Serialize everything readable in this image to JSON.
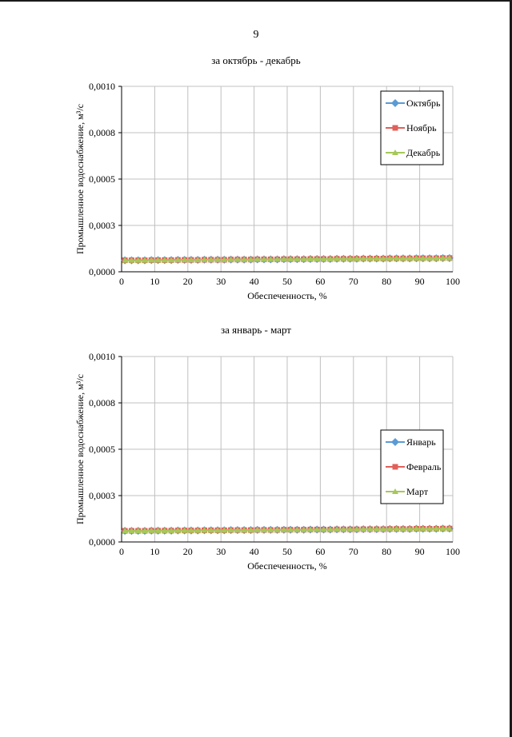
{
  "page": {
    "number": "9"
  },
  "colors": {
    "series1": "#5b9bd5",
    "series2": "#e0605a",
    "series3": "#a6c85a",
    "grid": "#c0c0c0",
    "axis": "#808080"
  },
  "chart_data": [
    {
      "type": "line",
      "title": "за октябрь - декабрь",
      "xlabel": "Обеспеченность, %",
      "ylabel": "Промышленное водоснабжение, м³/с",
      "xlim": [
        0,
        100
      ],
      "ylim": [
        0,
        0.001
      ],
      "x_ticks": [
        "0",
        "10",
        "20",
        "30",
        "40",
        "50",
        "60",
        "70",
        "80",
        "90",
        "100"
      ],
      "y_ticks": [
        "0,0000",
        "0,0003",
        "0,0005",
        "0,0008",
        "0,0010"
      ],
      "grid": true,
      "legend_position": "top-right",
      "x": [
        1,
        3,
        5,
        7,
        9,
        11,
        13,
        15,
        17,
        19,
        21,
        23,
        25,
        27,
        29,
        31,
        33,
        35,
        37,
        39,
        41,
        43,
        45,
        47,
        49,
        51,
        53,
        55,
        57,
        59,
        61,
        63,
        65,
        67,
        69,
        71,
        73,
        75,
        77,
        79,
        81,
        83,
        85,
        87,
        89,
        91,
        93,
        95,
        97,
        99
      ],
      "series": [
        {
          "name": "Октябрь",
          "marker": "diamond",
          "values": [
            6.2e-05,
            6.2e-05,
            6.2e-05,
            6.2e-05,
            6.3e-05,
            6.3e-05,
            6.3e-05,
            6.3e-05,
            6.4e-05,
            6.4e-05,
            6.4e-05,
            6.4e-05,
            6.5e-05,
            6.5e-05,
            6.5e-05,
            6.5e-05,
            6.6e-05,
            6.6e-05,
            6.6e-05,
            6.6e-05,
            6.7e-05,
            6.7e-05,
            6.7e-05,
            6.7e-05,
            6.8e-05,
            6.8e-05,
            6.8e-05,
            6.8e-05,
            6.9e-05,
            6.9e-05,
            6.9e-05,
            6.9e-05,
            7e-05,
            7e-05,
            7e-05,
            7e-05,
            7.1e-05,
            7.1e-05,
            7.1e-05,
            7.1e-05,
            7.2e-05,
            7.2e-05,
            7.2e-05,
            7.2e-05,
            7.3e-05,
            7.3e-05,
            7.3e-05,
            7.3e-05,
            7.4e-05,
            7.4e-05
          ]
        },
        {
          "name": "Ноябрь",
          "marker": "square",
          "values": [
            6.2e-05,
            6.2e-05,
            6.2e-05,
            6.2e-05,
            6.3e-05,
            6.3e-05,
            6.3e-05,
            6.3e-05,
            6.4e-05,
            6.4e-05,
            6.4e-05,
            6.4e-05,
            6.5e-05,
            6.5e-05,
            6.5e-05,
            6.5e-05,
            6.6e-05,
            6.6e-05,
            6.6e-05,
            6.6e-05,
            6.7e-05,
            6.7e-05,
            6.7e-05,
            6.7e-05,
            6.8e-05,
            6.8e-05,
            6.8e-05,
            6.8e-05,
            6.9e-05,
            6.9e-05,
            6.9e-05,
            6.9e-05,
            7e-05,
            7e-05,
            7e-05,
            7e-05,
            7.1e-05,
            7.1e-05,
            7.1e-05,
            7.1e-05,
            7.2e-05,
            7.2e-05,
            7.2e-05,
            7.2e-05,
            7.3e-05,
            7.3e-05,
            7.3e-05,
            7.3e-05,
            7.4e-05,
            7.4e-05
          ]
        },
        {
          "name": "Декабрь",
          "marker": "triangle",
          "values": [
            6.2e-05,
            6.2e-05,
            6.2e-05,
            6.2e-05,
            6.3e-05,
            6.3e-05,
            6.3e-05,
            6.3e-05,
            6.4e-05,
            6.4e-05,
            6.4e-05,
            6.4e-05,
            6.5e-05,
            6.5e-05,
            6.5e-05,
            6.5e-05,
            6.6e-05,
            6.6e-05,
            6.6e-05,
            6.6e-05,
            6.7e-05,
            6.7e-05,
            6.7e-05,
            6.7e-05,
            6.8e-05,
            6.8e-05,
            6.8e-05,
            6.8e-05,
            6.9e-05,
            6.9e-05,
            6.9e-05,
            6.9e-05,
            7e-05,
            7e-05,
            7e-05,
            7e-05,
            7.1e-05,
            7.1e-05,
            7.1e-05,
            7.1e-05,
            7.2e-05,
            7.2e-05,
            7.2e-05,
            7.2e-05,
            7.3e-05,
            7.3e-05,
            7.3e-05,
            7.3e-05,
            7.4e-05,
            7.4e-05
          ]
        }
      ]
    },
    {
      "type": "line",
      "title": "за январь - март",
      "xlabel": "Обеспеченность, %",
      "ylabel": "Промышленное водоснабжение, м³/с",
      "xlim": [
        0,
        100
      ],
      "ylim": [
        0,
        0.001
      ],
      "x_ticks": [
        "0",
        "10",
        "20",
        "30",
        "40",
        "50",
        "60",
        "70",
        "80",
        "90",
        "100"
      ],
      "y_ticks": [
        "0,0000",
        "0,0003",
        "0,0005",
        "0,0008",
        "0,0010"
      ],
      "grid": true,
      "legend_position": "right",
      "x": [
        1,
        3,
        5,
        7,
        9,
        11,
        13,
        15,
        17,
        19,
        21,
        23,
        25,
        27,
        29,
        31,
        33,
        35,
        37,
        39,
        41,
        43,
        45,
        47,
        49,
        51,
        53,
        55,
        57,
        59,
        61,
        63,
        65,
        67,
        69,
        71,
        73,
        75,
        77,
        79,
        81,
        83,
        85,
        87,
        89,
        91,
        93,
        95,
        97,
        99
      ],
      "series": [
        {
          "name": "Январь",
          "marker": "diamond",
          "values": [
            6e-05,
            6e-05,
            6e-05,
            6e-05,
            6.1e-05,
            6.1e-05,
            6.1e-05,
            6.1e-05,
            6.2e-05,
            6.2e-05,
            6.2e-05,
            6.2e-05,
            6.3e-05,
            6.3e-05,
            6.3e-05,
            6.3e-05,
            6.4e-05,
            6.4e-05,
            6.4e-05,
            6.4e-05,
            6.5e-05,
            6.5e-05,
            6.5e-05,
            6.5e-05,
            6.6e-05,
            6.6e-05,
            6.6e-05,
            6.6e-05,
            6.7e-05,
            6.7e-05,
            6.7e-05,
            6.7e-05,
            6.8e-05,
            6.8e-05,
            6.8e-05,
            6.8e-05,
            6.9e-05,
            6.9e-05,
            6.9e-05,
            6.9e-05,
            7e-05,
            7e-05,
            7e-05,
            7e-05,
            7.1e-05,
            7.1e-05,
            7.1e-05,
            7.1e-05,
            7.2e-05,
            7.2e-05
          ]
        },
        {
          "name": "Февраль",
          "marker": "square",
          "values": [
            6e-05,
            6e-05,
            6e-05,
            6e-05,
            6.1e-05,
            6.1e-05,
            6.1e-05,
            6.1e-05,
            6.2e-05,
            6.2e-05,
            6.2e-05,
            6.2e-05,
            6.3e-05,
            6.3e-05,
            6.3e-05,
            6.3e-05,
            6.4e-05,
            6.4e-05,
            6.4e-05,
            6.4e-05,
            6.5e-05,
            6.5e-05,
            6.5e-05,
            6.5e-05,
            6.6e-05,
            6.6e-05,
            6.6e-05,
            6.6e-05,
            6.7e-05,
            6.7e-05,
            6.7e-05,
            6.7e-05,
            6.8e-05,
            6.8e-05,
            6.8e-05,
            6.8e-05,
            6.9e-05,
            6.9e-05,
            6.9e-05,
            6.9e-05,
            7e-05,
            7e-05,
            7e-05,
            7e-05,
            7.1e-05,
            7.1e-05,
            7.1e-05,
            7.1e-05,
            7.2e-05,
            7.2e-05
          ]
        },
        {
          "name": "Март",
          "marker": "triangle",
          "values": [
            6e-05,
            6e-05,
            6e-05,
            6e-05,
            6.1e-05,
            6.1e-05,
            6.1e-05,
            6.1e-05,
            6.2e-05,
            6.2e-05,
            6.2e-05,
            6.2e-05,
            6.3e-05,
            6.3e-05,
            6.3e-05,
            6.3e-05,
            6.4e-05,
            6.4e-05,
            6.4e-05,
            6.4e-05,
            6.5e-05,
            6.5e-05,
            6.5e-05,
            6.5e-05,
            6.6e-05,
            6.6e-05,
            6.6e-05,
            6.6e-05,
            6.7e-05,
            6.7e-05,
            6.7e-05,
            6.7e-05,
            6.8e-05,
            6.8e-05,
            6.8e-05,
            6.8e-05,
            6.9e-05,
            6.9e-05,
            6.9e-05,
            6.9e-05,
            7e-05,
            7e-05,
            7e-05,
            7e-05,
            7.1e-05,
            7.1e-05,
            7.1e-05,
            7.1e-05,
            7.2e-05,
            7.2e-05
          ]
        }
      ]
    }
  ]
}
